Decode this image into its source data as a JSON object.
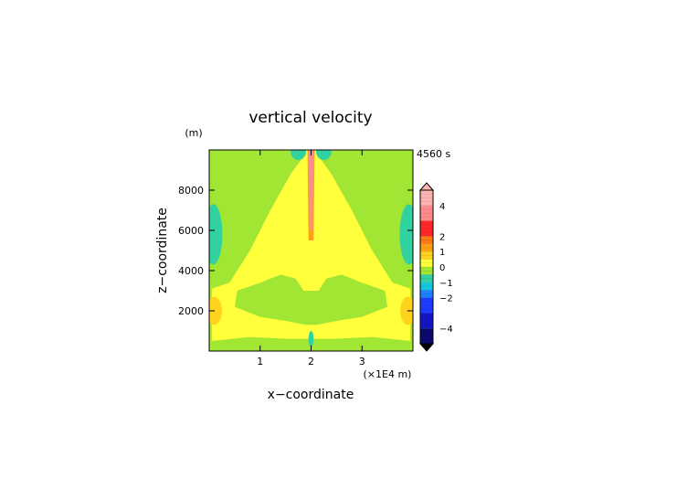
{
  "chart_data": {
    "type": "heatmap",
    "title": "vertical velocity",
    "xlabel": "x−coordinate",
    "ylabel": "z−coordinate",
    "x_unit": "(×1E4 m)",
    "y_unit": "(m)",
    "time_label": "4560 s",
    "xlim": [
      0,
      4
    ],
    "ylim": [
      0,
      10000
    ],
    "x_ticks": [
      {
        "value": 1,
        "label": "1"
      },
      {
        "value": 2,
        "label": "2"
      },
      {
        "value": 3,
        "label": "3"
      }
    ],
    "y_ticks": [
      {
        "value": 2000,
        "label": "2000"
      },
      {
        "value": 4000,
        "label": "4000"
      },
      {
        "value": 6000,
        "label": "6000"
      },
      {
        "value": 8000,
        "label": "8000"
      }
    ],
    "grid": false,
    "colorbar": {
      "min": -5,
      "max": 5,
      "ticks": [
        {
          "value": 4,
          "label": "4"
        },
        {
          "value": 2,
          "label": "2"
        },
        {
          "value": 1,
          "label": "1"
        },
        {
          "value": 0,
          "label": "0"
        },
        {
          "value": -1,
          "label": "−1"
        },
        {
          "value": -2,
          "label": "−2"
        },
        {
          "value": -4,
          "label": "−4"
        }
      ],
      "levels": [
        {
          "from": 4.0,
          "to": 5.0,
          "color": "#ffb4b4"
        },
        {
          "from": 3.0,
          "to": 4.0,
          "color": "#ff8c8c"
        },
        {
          "from": 2.0,
          "to": 3.0,
          "color": "#ff2828"
        },
        {
          "from": 1.5,
          "to": 2.0,
          "color": "#ff7814"
        },
        {
          "from": 1.0,
          "to": 1.5,
          "color": "#ffa014"
        },
        {
          "from": 0.5,
          "to": 1.0,
          "color": "#ffd21e"
        },
        {
          "from": 0.0,
          "to": 0.5,
          "color": "#ffff3c"
        },
        {
          "from": -0.5,
          "to": 0.0,
          "color": "#a0e632"
        },
        {
          "from": -1.0,
          "to": -0.5,
          "color": "#32d2a0"
        },
        {
          "from": -1.5,
          "to": -1.0,
          "color": "#14c8dc"
        },
        {
          "from": -2.0,
          "to": -1.5,
          "color": "#1e82ff"
        },
        {
          "from": -3.0,
          "to": -2.0,
          "color": "#1e3cff"
        },
        {
          "from": -4.0,
          "to": -3.0,
          "color": "#1414c8"
        },
        {
          "from": -5.0,
          "to": -4.0,
          "color": "#0a0a6e"
        }
      ]
    },
    "field_description_levels": {
      "background": -0.25,
      "updraft_band": 0.25,
      "central_plume": 3.5,
      "plume_edge": 1.2,
      "side_lobes": -1.0,
      "side_warm": 0.8
    }
  }
}
